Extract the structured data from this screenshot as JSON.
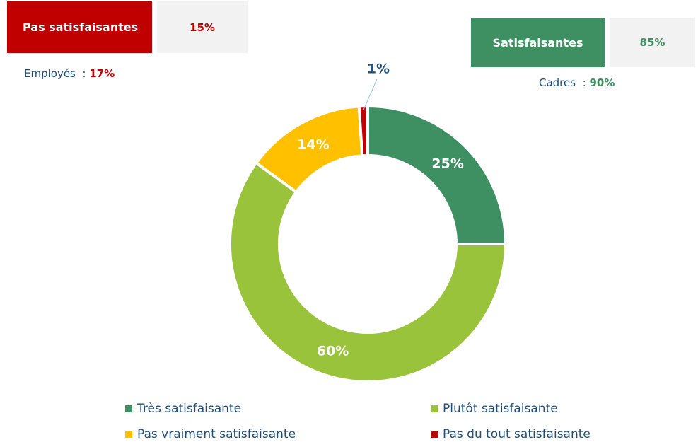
{
  "chart_data": {
    "type": "donut",
    "categories": [
      "Très satisfaisante",
      "Plutôt satisfaisante",
      "Pas vraiment satisfaisante",
      "Pas du tout satisfaisante"
    ],
    "values": [
      25,
      60,
      14,
      1
    ],
    "value_labels": [
      "25%",
      "60%",
      "14%",
      "1%"
    ],
    "colors": [
      "#3e9063",
      "#9ac33c",
      "#ffc000",
      "#c00000"
    ],
    "legend": "bottom"
  },
  "summary": {
    "negative": {
      "label": "Pas satisfaisantes",
      "value": "15%",
      "group": "Employés",
      "sep": ":",
      "group_value": "17%"
    },
    "positive": {
      "label": "Satisfaisantes",
      "value": "85%",
      "group": "Cadres",
      "sep": ":",
      "group_value": "90%"
    }
  }
}
